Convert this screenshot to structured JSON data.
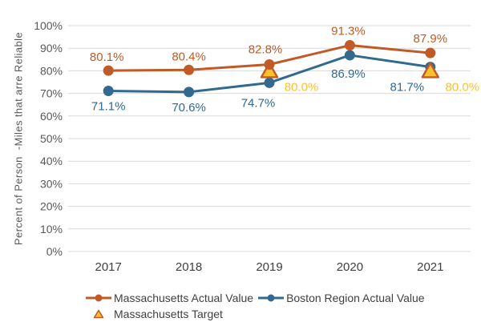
{
  "chart_data": {
    "type": "line",
    "title": "",
    "xlabel": "",
    "ylabel": "Percent of Person  -Miles that arre Reliable",
    "categories": [
      "2017",
      "2018",
      "2019",
      "2020",
      "2021"
    ],
    "ylim": [
      0,
      100
    ],
    "y_tick_step": 10,
    "y_tick_labels": [
      "0%",
      "10%",
      "20%",
      "30%",
      "40%",
      "50%",
      "60%",
      "70%",
      "80%",
      "90%",
      "100%"
    ],
    "grid": "horizontal gridlines on",
    "legend_position": "bottom-left, two rows",
    "series": [
      {
        "name": "Massachusetts Actual Value",
        "type": "line",
        "marker": "circle",
        "color": "#C15A26",
        "values": [
          80.1,
          80.4,
          82.8,
          91.3,
          87.9
        ],
        "point_labels": [
          "80.1%",
          "80.4%",
          "82.8%",
          "91.3%",
          "87.9%"
        ],
        "label_offsets": [
          [
            -2,
            -17
          ],
          [
            0,
            -17
          ],
          [
            -5,
            -19
          ],
          [
            -2,
            -18
          ],
          [
            0,
            -18
          ]
        ]
      },
      {
        "name": "Boston Region Actual Value",
        "type": "line",
        "marker": "circle",
        "color": "#31698F",
        "values": [
          71.1,
          70.6,
          74.7,
          86.9,
          81.7
        ],
        "point_labels": [
          "71.1%",
          "70.6%",
          "74.7%",
          "86.9%",
          "81.7%"
        ],
        "label_offsets": [
          [
            0,
            19
          ],
          [
            0,
            19
          ],
          [
            -14,
            25
          ],
          [
            -2,
            23
          ],
          [
            -29,
            25
          ]
        ]
      },
      {
        "name": "Massachusetts Target",
        "type": "target_markers",
        "marker": "triangle",
        "color": "#C15A26",
        "fill": "#FFC02E",
        "label_color": "#FFC02E",
        "points": [
          {
            "category": "2019",
            "value": 80.0,
            "label": "80.0%"
          },
          {
            "category": "2021",
            "value": 80.0,
            "label": "80.0%"
          }
        ],
        "label_offsets": [
          [
            40,
            20
          ],
          [
            40,
            20
          ]
        ]
      }
    ],
    "axis": {
      "tick_color": "#595959",
      "xlabel_color": "#3F3F3F",
      "grid_color": "#D9D9D9"
    },
    "legend": {
      "text_color": "#404040",
      "icons": [
        "orange-line-dot-marker",
        "blue-line-dot-marker",
        "gold-triangle-marker"
      ]
    }
  }
}
